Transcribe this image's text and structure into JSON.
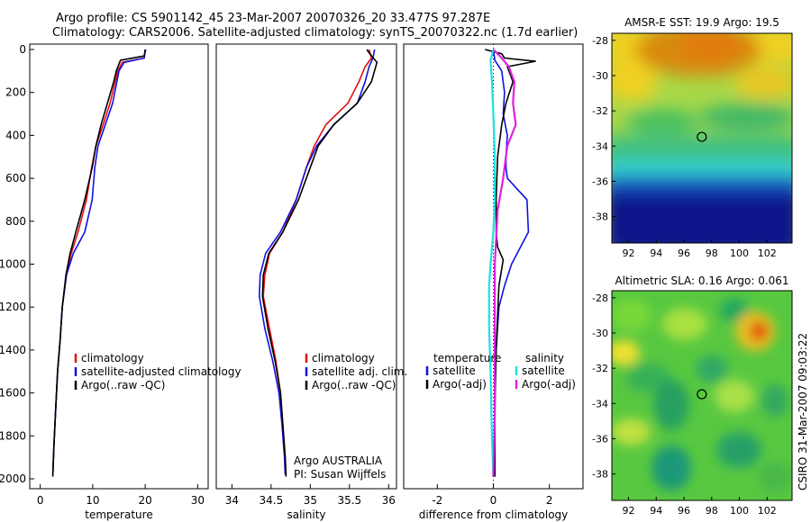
{
  "title_line1": "Argo profile: CS 5901142_45 23-Mar-2007 20070326_20 33.477S 97.287E",
  "title_line2": "Climatology: CARS2006. Satellite-adjusted climatology: synTS_20070322.nc (1.7d earlier)",
  "side_label": "CSIRO 31-Mar-2007 09:03:22",
  "colors": {
    "climatology": "#e01010",
    "satellite": "#1010e0",
    "argo": "#000000",
    "satellite_diff_salinity": "#20e0e0",
    "argo_diff_salinity": "#e020e0"
  },
  "chart_data": [
    {
      "type": "line",
      "xlabel": "temperature",
      "ylabel": "",
      "xlim": [
        -2,
        32
      ],
      "ylim": [
        2050,
        0
      ],
      "y_reversed": true,
      "xticks": [
        "0",
        "10",
        "20",
        "30"
      ],
      "yticks": [
        "0",
        "200",
        "400",
        "600",
        "800",
        "1000",
        "1200",
        "1400",
        "1600",
        "1800",
        "2000"
      ],
      "legend": {
        "placement": "lower-right",
        "entries": [
          "climatology",
          "satellite-adjusted climatology",
          "Argo(..raw -QC)"
        ]
      },
      "series": [
        {
          "name": "climatology",
          "color": "climatology",
          "x": [
            20.0,
            19.8,
            15.6,
            14.8,
            14.3,
            13.3,
            12.0,
            10.6,
            9.8,
            8.8,
            7.2,
            5.9,
            5.0,
            4.2,
            3.8,
            3.3,
            2.9,
            2.6,
            2.4
          ],
          "y": [
            0,
            40,
            60,
            100,
            150,
            250,
            350,
            450,
            550,
            700,
            850,
            950,
            1050,
            1200,
            1350,
            1500,
            1700,
            1850,
            1980
          ]
        },
        {
          "name": "satellite-adjusted climatology",
          "color": "satellite",
          "x": [
            20.0,
            19.8,
            16.0,
            15.0,
            14.6,
            13.8,
            12.4,
            11.0,
            10.4,
            9.9,
            8.5,
            6.3,
            5.0,
            4.2,
            3.8,
            3.3,
            2.9,
            2.6,
            2.4
          ],
          "y": [
            0,
            40,
            60,
            100,
            150,
            250,
            350,
            450,
            550,
            700,
            850,
            950,
            1050,
            1200,
            1350,
            1500,
            1700,
            1850,
            1980
          ]
        },
        {
          "name": "Argo(..raw -QC)",
          "color": "argo",
          "x": [
            20.1,
            19.8,
            15.3,
            14.5,
            14.0,
            12.8,
            11.6,
            10.6,
            9.9,
            8.5,
            6.8,
            5.7,
            4.9,
            4.2,
            3.8,
            3.3,
            2.9,
            2.6,
            2.4
          ],
          "y": [
            0,
            30,
            50,
            100,
            150,
            250,
            350,
            450,
            550,
            700,
            850,
            950,
            1050,
            1200,
            1350,
            1500,
            1700,
            1850,
            1990
          ]
        }
      ]
    },
    {
      "type": "line",
      "xlabel": "salinity",
      "ylabel": "",
      "xlim": [
        33.8,
        36.1
      ],
      "ylim": [
        2050,
        0
      ],
      "y_reversed": true,
      "xticks": [
        "34",
        "34.5",
        "35",
        "35.5",
        "36"
      ],
      "yticks": [],
      "legend": {
        "placement": "lower-right",
        "entries": [
          "climatology",
          "satellite adj. clim.",
          "Argo(..raw -QC)"
        ]
      },
      "annotation": [
        "Argo AUSTRALIA",
        "PI: Susan Wijffels"
      ],
      "series": [
        {
          "name": "climatology",
          "color": "climatology",
          "x": [
            35.75,
            35.78,
            35.7,
            35.62,
            35.48,
            35.2,
            35.05,
            34.95,
            34.82,
            34.65,
            34.48,
            34.42,
            34.4,
            34.48,
            34.56,
            34.62,
            34.65,
            34.68,
            34.69
          ],
          "y": [
            0,
            40,
            80,
            150,
            250,
            350,
            450,
            550,
            700,
            850,
            950,
            1050,
            1150,
            1300,
            1450,
            1600,
            1750,
            1900,
            1980
          ]
        },
        {
          "name": "satellite adj. clim.",
          "color": "satellite",
          "x": [
            35.82,
            35.8,
            35.75,
            35.7,
            35.6,
            35.3,
            35.08,
            34.95,
            34.82,
            34.62,
            34.43,
            34.36,
            34.35,
            34.42,
            34.52,
            34.6,
            34.64,
            34.67,
            34.68
          ],
          "y": [
            0,
            40,
            80,
            150,
            250,
            350,
            450,
            550,
            700,
            850,
            950,
            1050,
            1150,
            1300,
            1450,
            1600,
            1750,
            1900,
            1980
          ]
        },
        {
          "name": "Argo(..raw -QC)",
          "color": "argo",
          "x": [
            35.72,
            35.76,
            35.85,
            35.78,
            35.6,
            35.3,
            35.1,
            35.0,
            34.85,
            34.65,
            34.47,
            34.4,
            34.39,
            34.46,
            34.55,
            34.62,
            34.65,
            34.68,
            34.69
          ],
          "y": [
            0,
            20,
            60,
            150,
            250,
            350,
            450,
            550,
            700,
            850,
            950,
            1050,
            1150,
            1300,
            1450,
            1600,
            1750,
            1900,
            1990
          ]
        }
      ]
    },
    {
      "type": "line",
      "xlabel": "difference from climatology",
      "ylabel": "",
      "xlim": [
        -3.2,
        3.2
      ],
      "ylim": [
        2050,
        0
      ],
      "y_reversed": true,
      "xticks": [
        "-2",
        "0",
        "2"
      ],
      "yticks": [],
      "legend": {
        "placement": "lower",
        "groups": [
          "temperature",
          "salinity"
        ],
        "entries": [
          "satellite",
          "Argo(-adj)",
          "satellite",
          "Argo(-adj)"
        ]
      },
      "series": [
        {
          "name": "satellite",
          "color": "satellite",
          "x": [
            0.0,
            0.05,
            0.3,
            0.4,
            0.35,
            0.5,
            0.45,
            0.45,
            0.5,
            1.2,
            1.25,
            0.65,
            0.4,
            0.2,
            0.1,
            0.05,
            0.05,
            0.05
          ],
          "y": [
            0,
            50,
            100,
            200,
            300,
            400,
            500,
            550,
            600,
            700,
            850,
            1000,
            1100,
            1200,
            1400,
            1600,
            1800,
            1990
          ]
        },
        {
          "name": "Argo(-adj)",
          "color": "argo",
          "x": [
            -0.3,
            0.3,
            0.4,
            1.5,
            0.5,
            0.7,
            0.45,
            0.3,
            0.15,
            0.1,
            0.1,
            0.15,
            0.35,
            0.2,
            0.1,
            0.05,
            0.05
          ],
          "y": [
            0,
            20,
            40,
            55,
            80,
            150,
            250,
            350,
            500,
            700,
            850,
            920,
            980,
            1100,
            1400,
            1700,
            1990
          ]
        },
        {
          "name": "satellite",
          "color": "satellite_diff_salinity",
          "x": [
            0.0,
            -0.1,
            -0.05,
            0.0,
            0.05,
            0.05,
            0.0,
            -0.1,
            -0.15,
            -0.15,
            -0.1,
            -0.05,
            0.0
          ],
          "y": [
            0,
            50,
            150,
            300,
            500,
            700,
            850,
            1000,
            1100,
            1300,
            1500,
            1800,
            1990
          ]
        },
        {
          "name": "Argo(-adj)",
          "color": "argo_diff_salinity",
          "x": [
            0.0,
            0.3,
            0.55,
            0.75,
            0.7,
            0.8,
            0.5,
            0.35,
            0.15,
            0.05,
            0.05,
            0.05,
            0.0
          ],
          "y": [
            0,
            40,
            80,
            150,
            250,
            350,
            450,
            600,
            750,
            1000,
            1300,
            1700,
            1990
          ]
        }
      ]
    },
    {
      "type": "heatmap",
      "title": "AMSR-E SST: 19.9 Argo: 19.5",
      "xlim": [
        90.8,
        103.8
      ],
      "ylim": [
        -39.5,
        -27.6
      ],
      "xticks": [
        "92",
        "94",
        "96",
        "98",
        "100",
        "102"
      ],
      "yticks": [
        "-28",
        "-30",
        "-32",
        "-34",
        "-36",
        "-38"
      ],
      "marker": {
        "lon": 97.287,
        "lat": -33.477
      }
    },
    {
      "type": "heatmap",
      "title": "Altimetric SLA: 0.16 Argo: 0.061",
      "xlim": [
        90.8,
        103.8
      ],
      "ylim": [
        -39.5,
        -27.6
      ],
      "xticks": [
        "92",
        "94",
        "96",
        "98",
        "100",
        "102"
      ],
      "yticks": [
        "-28",
        "-30",
        "-32",
        "-34",
        "-36",
        "-38"
      ],
      "marker": {
        "lon": 97.287,
        "lat": -33.477
      }
    }
  ]
}
